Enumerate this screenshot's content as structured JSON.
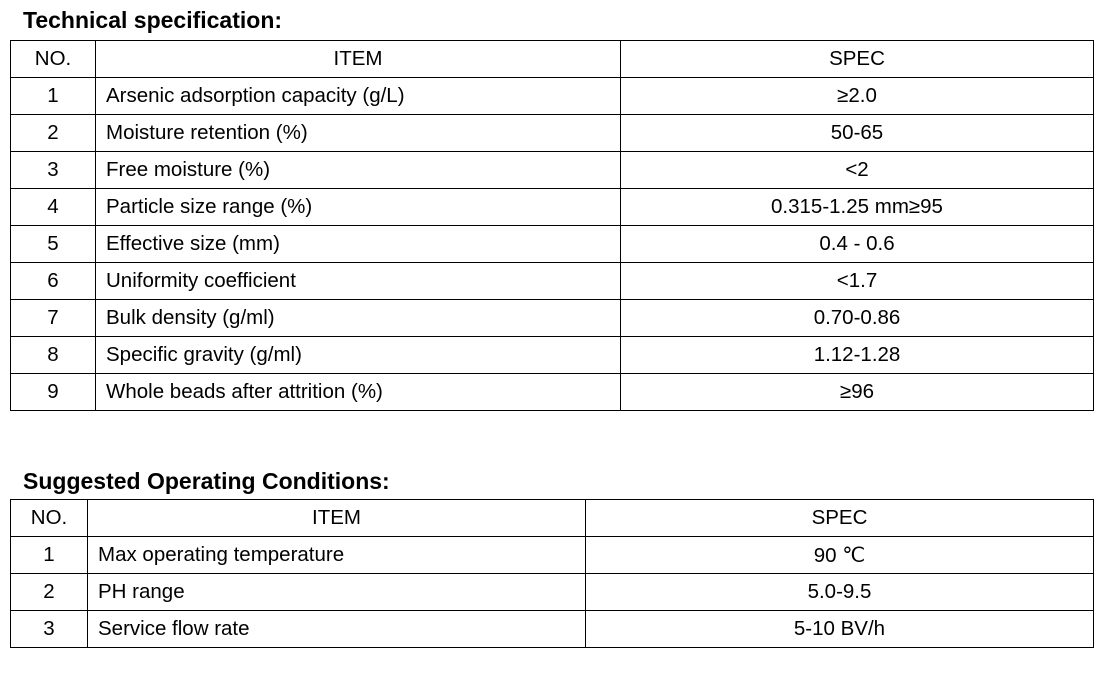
{
  "sections": [
    {
      "title": "Technical specification:",
      "table": {
        "header": [
          "NO.",
          "ITEM",
          "SPEC"
        ],
        "rows": [
          [
            "1",
            "Arsenic adsorption capacity (g/L)",
            "≥2.0"
          ],
          [
            "2",
            "Moisture retention (%)",
            "50-65"
          ],
          [
            "3",
            "Free moisture (%)",
            "<2"
          ],
          [
            "4",
            "Particle size range (%)",
            "0.315-1.25 mm≥95"
          ],
          [
            "5",
            "Effective size (mm)",
            "0.4 - 0.6"
          ],
          [
            "6",
            "Uniformity coefficient",
            "<1.7"
          ],
          [
            "7",
            "Bulk density (g/ml)",
            "0.70-0.86"
          ],
          [
            "8",
            "Specific gravity (g/ml)",
            "1.12-1.28"
          ],
          [
            "9",
            "Whole beads after attrition (%)",
            "≥96"
          ]
        ]
      }
    },
    {
      "title": "Suggested Operating Conditions:",
      "table": {
        "header": [
          "NO.",
          "ITEM",
          "SPEC"
        ],
        "rows": [
          [
            "1",
            "Max operating temperature",
            "90 ℃"
          ],
          [
            "2",
            "PH range",
            "5.0-9.5"
          ],
          [
            "3",
            "Service flow rate",
            "5-10 BV/h"
          ]
        ]
      }
    }
  ]
}
